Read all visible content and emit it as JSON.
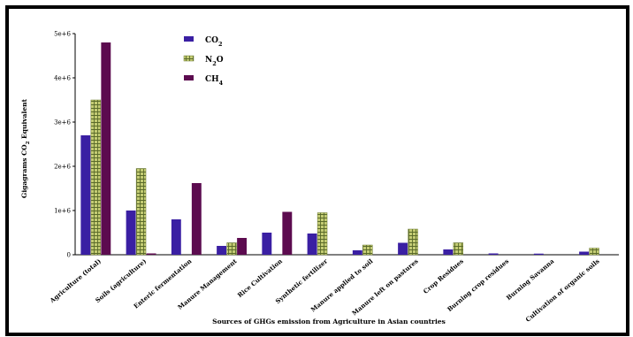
{
  "chart_data": {
    "type": "bar",
    "title": "",
    "xlabel": "Sources of GHGs emission from Agriculture in Asian countries",
    "ylabel": "Gigagrams CO2 Equivalent",
    "ylim": [
      0,
      5000000
    ],
    "y_ticks": [
      {
        "value": 0,
        "label": "0"
      },
      {
        "value": 1000000,
        "label": "1e+6"
      },
      {
        "value": 2000000,
        "label": "2e+6"
      },
      {
        "value": 3000000,
        "label": "3e+6"
      },
      {
        "value": 4000000,
        "label": "4e+6"
      },
      {
        "value": 5000000,
        "label": "5e+6"
      }
    ],
    "grid": false,
    "legend_position": "top-left",
    "categories": [
      "Agriculture (total)",
      "Soils (agriculture)",
      "Enteric fermentation",
      "Manure Management",
      "Rice Cultivation",
      "Synthetic fertilizer",
      "Manure applied to soil",
      "Manure left on pastures",
      "Crop Residues",
      "Burning crop residues",
      "Burning Savanna",
      "Cultivation of organic soils"
    ],
    "series": [
      {
        "name": "CO2",
        "legend_text": "CO",
        "legend_sub": "2",
        "color": "#3a1fa3",
        "pattern": "solid",
        "values": [
          2700000,
          1000000,
          800000,
          200000,
          500000,
          480000,
          100000,
          270000,
          120000,
          30000,
          25000,
          70000
        ]
      },
      {
        "name": "N2O",
        "legend_text": "N",
        "legend_sub": "2",
        "legend_tail": "O",
        "color": "#b9c268",
        "pattern": "grid",
        "values": [
          3500000,
          1950000,
          0,
          270000,
          0,
          950000,
          220000,
          580000,
          270000,
          0,
          0,
          150000
        ]
      },
      {
        "name": "CH4",
        "legend_text": "CH",
        "legend_sub": "4",
        "color": "#5c0b4f",
        "pattern": "solid",
        "values": [
          4800000,
          30000,
          1620000,
          380000,
          970000,
          0,
          0,
          0,
          0,
          0,
          0,
          0
        ]
      }
    ]
  }
}
